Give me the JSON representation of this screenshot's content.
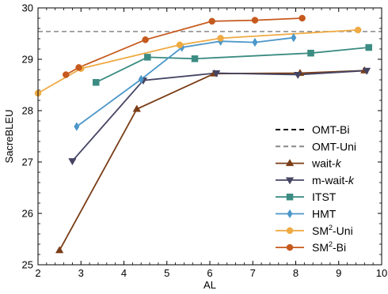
{
  "chart_data": {
    "type": "line",
    "title": "",
    "xlabel": "AL",
    "ylabel": "SacreBLEU",
    "xlim": [
      2,
      10
    ],
    "ylim": [
      25,
      30
    ],
    "xticks": [
      "2",
      "3",
      "4",
      "5",
      "6",
      "7",
      "8",
      "9",
      "10"
    ],
    "yticks": [
      "25",
      "26",
      "27",
      "28",
      "29",
      "30"
    ],
    "grid": false,
    "legend_position": "bottom-right",
    "series": [
      {
        "name": "OMT-Bi",
        "style": "dashed",
        "color": "#000000",
        "marker": "none",
        "x": [],
        "y": []
      },
      {
        "name": "OMT-Uni",
        "style": "dashed",
        "color": "#888888",
        "marker": "none",
        "hline": 29.54,
        "x": [],
        "y": []
      },
      {
        "name": "wait-k",
        "name_prefix": "wait-",
        "name_italic": "k",
        "color": "#7a3d17",
        "marker": "triangle-up",
        "x": [
          2.5,
          4.3,
          6.1,
          8.1,
          9.6
        ],
        "y": [
          25.28,
          28.03,
          28.72,
          28.73,
          28.78
        ]
      },
      {
        "name": "m-wait-k",
        "name_prefix": "m-wait-",
        "name_italic": "k",
        "color": "#454463",
        "marker": "triangle-down",
        "x": [
          2.8,
          4.45,
          6.15,
          8.05,
          9.65
        ],
        "y": [
          27.02,
          28.59,
          28.73,
          28.7,
          28.78
        ]
      },
      {
        "name": "ITST",
        "color": "#3b8c82",
        "marker": "square",
        "x": [
          3.35,
          4.55,
          5.65,
          8.35,
          9.7
        ],
        "y": [
          28.55,
          29.04,
          29.01,
          29.12,
          29.23
        ]
      },
      {
        "name": "HMT",
        "color": "#4b97c9",
        "marker": "diamond",
        "x": [
          2.9,
          4.4,
          5.35,
          6.25,
          7.05,
          7.95
        ],
        "y": [
          27.69,
          28.61,
          29.23,
          29.35,
          29.33,
          29.42
        ]
      },
      {
        "name": "SM2-Uni",
        "name_prefix": "SM",
        "name_sup": "2",
        "name_suffix": "-Uni",
        "color": "#efaa43",
        "marker": "circle",
        "x": [
          2.0,
          3.0,
          5.3,
          6.25,
          9.45
        ],
        "y": [
          28.34,
          28.82,
          29.28,
          29.41,
          29.57
        ]
      },
      {
        "name": "SM2-Bi",
        "name_prefix": "SM",
        "name_sup": "2",
        "name_suffix": "-Bi",
        "color": "#c65a1e",
        "marker": "circle",
        "x": [
          2.65,
          2.95,
          4.5,
          6.05,
          7.05,
          8.15
        ],
        "y": [
          28.7,
          28.84,
          29.38,
          29.74,
          29.76,
          29.8
        ]
      }
    ]
  }
}
